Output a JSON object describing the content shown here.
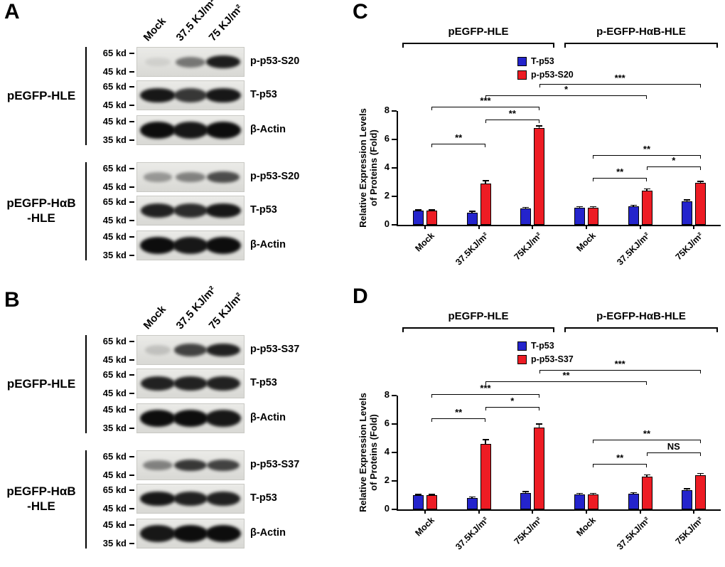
{
  "panels": {
    "A": {
      "label": "A",
      "lanes": [
        "Mock",
        "37.5 KJ/m²",
        "75 KJ/m²"
      ],
      "groups": [
        {
          "name_lines": [
            "pEGFP-HLE"
          ],
          "rows": [
            {
              "markers": [
                "65 kd",
                "45 kd"
              ],
              "label": "p-p53-S20",
              "band_h": 12,
              "bands": [
                0.08,
                0.5,
                0.92
              ]
            },
            {
              "markers": [
                "65 kd",
                "45 kd"
              ],
              "label": "T-p53",
              "band_h": 15,
              "bands": [
                0.95,
                0.8,
                0.95
              ]
            },
            {
              "markers": [
                "45 kd",
                "35 kd"
              ],
              "label": "β-Actin",
              "band_h": 18,
              "bands": [
                1,
                0.95,
                1
              ]
            }
          ]
        },
        {
          "name_lines": [
            "pEGFP-HαB",
            "-HLE"
          ],
          "rows": [
            {
              "markers": [
                "65 kd",
                "45 kd"
              ],
              "label": "p-p53-S20",
              "band_h": 11,
              "bands": [
                0.35,
                0.45,
                0.7
              ]
            },
            {
              "markers": [
                "65 kd",
                "45 kd"
              ],
              "label": "T-p53",
              "band_h": 15,
              "bands": [
                0.9,
                0.85,
                0.95
              ]
            },
            {
              "markers": [
                "45 kd",
                "35 kd"
              ],
              "label": "β-Actin",
              "band_h": 18,
              "bands": [
                1,
                0.95,
                1
              ]
            }
          ]
        }
      ]
    },
    "B": {
      "label": "B",
      "lanes": [
        "Mock",
        "37.5 KJ/m²",
        "75 KJ/m²"
      ],
      "groups": [
        {
          "name_lines": [
            "pEGFP-HLE"
          ],
          "rows": [
            {
              "markers": [
                "65 kd",
                "45 kd"
              ],
              "label": "p-p53-S37",
              "band_h": 13,
              "bands": [
                0.15,
                0.75,
                0.9
              ]
            },
            {
              "markers": [
                "65 kd",
                "45 kd"
              ],
              "label": "T-p53",
              "band_h": 15,
              "bands": [
                0.9,
                0.9,
                0.9
              ]
            },
            {
              "markers": [
                "45 kd",
                "35 kd"
              ],
              "label": "β-Actin",
              "band_h": 18,
              "bands": [
                1,
                1,
                0.95
              ]
            }
          ]
        },
        {
          "name_lines": [
            "pEGFP-HαB",
            "-HLE"
          ],
          "rows": [
            {
              "markers": [
                "65 kd",
                "45 kd"
              ],
              "label": "p-p53-S37",
              "band_h": 12,
              "bands": [
                0.45,
                0.8,
                0.75
              ]
            },
            {
              "markers": [
                "65 kd",
                "45 kd"
              ],
              "label": "T-p53",
              "band_h": 15,
              "bands": [
                0.95,
                0.9,
                0.9
              ]
            },
            {
              "markers": [
                "45 kd",
                "35 kd"
              ],
              "label": "β-Actin",
              "band_h": 18,
              "bands": [
                0.95,
                1,
                1
              ]
            }
          ]
        }
      ]
    }
  },
  "chart_data": [
    {
      "panel_label": "C",
      "type": "bar",
      "group_labels": [
        "pEGFP-HLE",
        "p-EGFP-HαB-HLE"
      ],
      "categories": [
        "Mock",
        "37.5KJ/m²",
        "75KJ/m²",
        "Mock",
        "37.5KJ/m²",
        "75KJ/m²"
      ],
      "series": [
        {
          "name": "T-p53",
          "color": "#2424cc",
          "values": [
            1.0,
            0.85,
            1.15,
            1.2,
            1.3,
            1.65
          ],
          "errors": [
            0.05,
            0.1,
            0.07,
            0.07,
            0.07,
            0.1
          ]
        },
        {
          "name": "p-p53-S20",
          "color": "#ed1c24",
          "values": [
            1.0,
            2.9,
            6.8,
            1.2,
            2.4,
            2.95
          ],
          "errors": [
            0.05,
            0.2,
            0.15,
            0.07,
            0.12,
            0.1
          ]
        }
      ],
      "ylabel_lines": [
        "Relative Expression Levels",
        "of Proteins (Fold)"
      ],
      "ylim": [
        0,
        8
      ],
      "yticks": [
        0,
        2,
        4,
        6,
        8
      ],
      "legend_position": "top-center",
      "significance": [
        {
          "from": 1,
          "to": 3,
          "label": "**",
          "y": 5.7
        },
        {
          "from": 3,
          "to": 5,
          "label": "**",
          "y": 7.4
        },
        {
          "from": 1,
          "to": 5,
          "label": "***",
          "y": 8.3
        },
        {
          "from": 3,
          "to": 9,
          "label": "*",
          "y": 9.1
        },
        {
          "from": 5,
          "to": 11,
          "label": "***",
          "y": 9.9
        },
        {
          "from": 7,
          "to": 9,
          "label": "**",
          "y": 3.3
        },
        {
          "from": 9,
          "to": 11,
          "label": "*",
          "y": 4.1
        },
        {
          "from": 7,
          "to": 11,
          "label": "**",
          "y": 4.9
        }
      ]
    },
    {
      "panel_label": "D",
      "type": "bar",
      "group_labels": [
        "pEGFP-HLE",
        "p-EGFP-HαB-HLE"
      ],
      "categories": [
        "Mock",
        "37.5KJ/m²",
        "75KJ/m²",
        "Mock",
        "37.5KJ/m²",
        "75KJ/m²"
      ],
      "series": [
        {
          "name": "T-p53",
          "color": "#2424cc",
          "values": [
            1.0,
            0.8,
            1.15,
            1.05,
            1.1,
            1.35
          ],
          "errors": [
            0.05,
            0.07,
            0.08,
            0.06,
            0.07,
            0.08
          ]
        },
        {
          "name": "p-p53-S37",
          "color": "#ed1c24",
          "values": [
            1.0,
            4.6,
            5.75,
            1.05,
            2.3,
            2.4
          ],
          "errors": [
            0.05,
            0.3,
            0.25,
            0.06,
            0.12,
            0.12
          ]
        }
      ],
      "ylabel_lines": [
        "Relative Expression Levels",
        "of Proteins (Fold)"
      ],
      "ylim": [
        0,
        8
      ],
      "yticks": [
        0,
        2,
        4,
        6,
        8
      ],
      "legend_position": "top-center",
      "significance": [
        {
          "from": 1,
          "to": 3,
          "label": "**",
          "y": 6.4
        },
        {
          "from": 3,
          "to": 5,
          "label": "*",
          "y": 7.2
        },
        {
          "from": 1,
          "to": 5,
          "label": "***",
          "y": 8.1
        },
        {
          "from": 3,
          "to": 9,
          "label": "**",
          "y": 9.0
        },
        {
          "from": 5,
          "to": 11,
          "label": "***",
          "y": 9.8
        },
        {
          "from": 7,
          "to": 9,
          "label": "**",
          "y": 3.2
        },
        {
          "from": 9,
          "to": 11,
          "label": "NS",
          "y": 4.0
        },
        {
          "from": 7,
          "to": 11,
          "label": "**",
          "y": 4.9
        }
      ]
    }
  ]
}
